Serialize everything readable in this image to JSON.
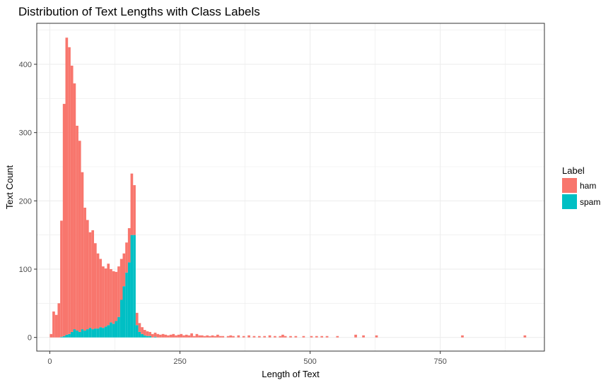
{
  "chart_data": {
    "type": "bar",
    "subtype": "stacked-histogram",
    "title": "Distribution of Text Lengths with Class Labels",
    "xlabel": "Length of Text",
    "ylabel": "Text Count",
    "xlim": [
      -25,
      950
    ],
    "ylim": [
      -20,
      460
    ],
    "xticks": [
      0,
      250,
      500,
      750
    ],
    "yticks": [
      0,
      100,
      200,
      300,
      400
    ],
    "grid": true,
    "bin_width": 5,
    "legend": {
      "title": "Label",
      "placement": "right"
    },
    "series": [
      {
        "name": "ham",
        "color": "#F8766D",
        "bins": [
          [
            0,
            5
          ],
          [
            5,
            38
          ],
          [
            10,
            33
          ],
          [
            15,
            50
          ],
          [
            20,
            170
          ],
          [
            25,
            340
          ],
          [
            30,
            435
          ],
          [
            35,
            420
          ],
          [
            40,
            390
          ],
          [
            45,
            360
          ],
          [
            50,
            300
          ],
          [
            55,
            280
          ],
          [
            60,
            230
          ],
          [
            65,
            180
          ],
          [
            70,
            160
          ],
          [
            75,
            140
          ],
          [
            80,
            145
          ],
          [
            85,
            125
          ],
          [
            90,
            110
          ],
          [
            95,
            100
          ],
          [
            100,
            90
          ],
          [
            105,
            85
          ],
          [
            110,
            90
          ],
          [
            115,
            78
          ],
          [
            120,
            77
          ],
          [
            125,
            72
          ],
          [
            130,
            74
          ],
          [
            135,
            60
          ],
          [
            140,
            48
          ],
          [
            145,
            44
          ],
          [
            150,
            50
          ],
          [
            155,
            90
          ],
          [
            160,
            73
          ],
          [
            165,
            18
          ],
          [
            170,
            13
          ],
          [
            175,
            10
          ],
          [
            180,
            8
          ],
          [
            185,
            7
          ],
          [
            190,
            6
          ],
          [
            195,
            5
          ],
          [
            200,
            6
          ],
          [
            205,
            5
          ],
          [
            210,
            4
          ],
          [
            215,
            5
          ],
          [
            220,
            4
          ],
          [
            225,
            3
          ],
          [
            230,
            4
          ],
          [
            235,
            5
          ],
          [
            240,
            3
          ],
          [
            245,
            4
          ],
          [
            250,
            5
          ],
          [
            255,
            3
          ],
          [
            260,
            4
          ],
          [
            265,
            3
          ],
          [
            270,
            6
          ],
          [
            275,
            2
          ],
          [
            280,
            5
          ],
          [
            285,
            3
          ],
          [
            290,
            3
          ],
          [
            295,
            2
          ],
          [
            300,
            3
          ],
          [
            305,
            2
          ],
          [
            310,
            3
          ],
          [
            315,
            2
          ],
          [
            320,
            4
          ],
          [
            325,
            2
          ],
          [
            330,
            2
          ],
          [
            340,
            2
          ],
          [
            345,
            3
          ],
          [
            350,
            2
          ],
          [
            360,
            3
          ],
          [
            370,
            2
          ],
          [
            380,
            3
          ],
          [
            390,
            2
          ],
          [
            400,
            2
          ],
          [
            410,
            2
          ],
          [
            420,
            3
          ],
          [
            430,
            2
          ],
          [
            440,
            2
          ],
          [
            445,
            4
          ],
          [
            450,
            2
          ],
          [
            460,
            2
          ],
          [
            470,
            2
          ],
          [
            485,
            2
          ],
          [
            500,
            2
          ],
          [
            510,
            2
          ],
          [
            520,
            2
          ],
          [
            530,
            2
          ],
          [
            550,
            2
          ],
          [
            585,
            4
          ],
          [
            600,
            3
          ],
          [
            625,
            3
          ],
          [
            790,
            3
          ],
          [
            910,
            3
          ]
        ]
      },
      {
        "name": "spam",
        "color": "#00BFC4",
        "bins": [
          [
            20,
            1
          ],
          [
            25,
            2
          ],
          [
            30,
            4
          ],
          [
            35,
            5
          ],
          [
            40,
            8
          ],
          [
            45,
            12
          ],
          [
            50,
            10
          ],
          [
            55,
            8
          ],
          [
            60,
            12
          ],
          [
            65,
            10
          ],
          [
            70,
            12
          ],
          [
            75,
            14
          ],
          [
            80,
            12
          ],
          [
            85,
            13
          ],
          [
            90,
            13
          ],
          [
            95,
            15
          ],
          [
            100,
            14
          ],
          [
            105,
            16
          ],
          [
            110,
            18
          ],
          [
            115,
            22
          ],
          [
            120,
            20
          ],
          [
            125,
            24
          ],
          [
            130,
            30
          ],
          [
            135,
            55
          ],
          [
            140,
            75
          ],
          [
            145,
            95
          ],
          [
            150,
            110
          ],
          [
            155,
            150
          ],
          [
            160,
            150
          ],
          [
            165,
            18
          ],
          [
            170,
            8
          ],
          [
            175,
            5
          ],
          [
            180,
            3
          ],
          [
            185,
            2
          ],
          [
            190,
            2
          ],
          [
            200,
            1
          ]
        ]
      }
    ]
  }
}
